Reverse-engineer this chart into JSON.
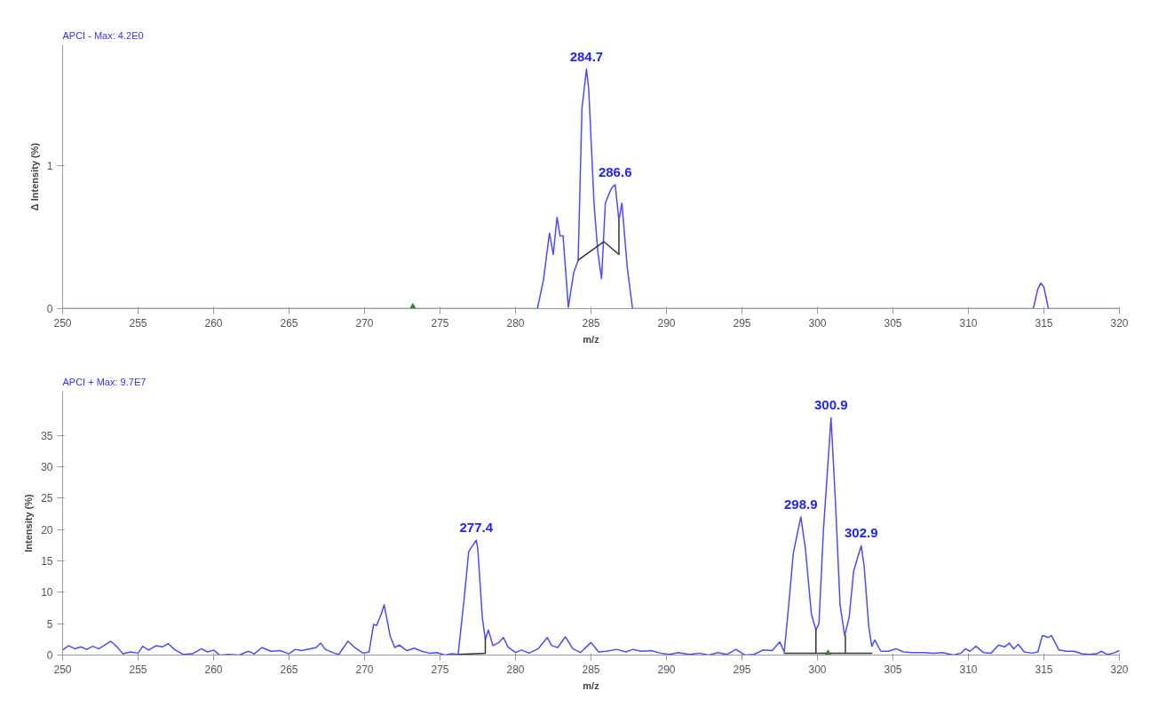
{
  "chart_data": [
    {
      "type": "line",
      "title": "APCI -   Max: 4.2E0",
      "xlabel": "m/z",
      "ylabel": "Δ Intensity (%)",
      "xlim": [
        250,
        320
      ],
      "xticks": [
        250,
        255,
        260,
        265,
        270,
        275,
        280,
        285,
        290,
        295,
        300,
        305,
        310,
        315,
        320
      ],
      "ylim": [
        0,
        1.85
      ],
      "yticks": [
        0,
        1
      ],
      "grid": false,
      "annotations": [
        {
          "text": "284.7",
          "x": 284.7,
          "y": 1.68
        },
        {
          "text": "286.6",
          "x": 286.6,
          "y": 0.87
        }
      ],
      "series": [
        {
          "color": "#4a4aff",
          "x": [
            250,
            281.45,
            281.85,
            282.25,
            282.5,
            282.75,
            282.95,
            283.15,
            283.5,
            283.85,
            284.15,
            284.4,
            284.7,
            284.85,
            285.2,
            285.45,
            285.7,
            285.95,
            286.25,
            286.4,
            286.6,
            286.85,
            287.05,
            287.4,
            287.75,
            314.3,
            314.6,
            314.8,
            315.0,
            315.3,
            320
          ],
          "values": [
            0,
            0,
            0.2,
            0.53,
            0.38,
            0.64,
            0.51,
            0.51,
            0.01,
            0.25,
            0.34,
            1.4,
            1.68,
            1.54,
            0.74,
            0.4,
            0.21,
            0.74,
            0.82,
            0.85,
            0.87,
            0.62,
            0.74,
            0.29,
            0,
            0,
            0.14,
            0.18,
            0.15,
            0,
            0
          ]
        },
        {
          "color": "#333333",
          "x": [
            284.15,
            285.85,
            286.85,
            286.85
          ],
          "values": [
            0.34,
            0.47,
            0.38,
            0.62
          ]
        },
        {
          "type": "scatter",
          "marker": "triangle",
          "color": "#2e8b2e",
          "x": [
            273.2
          ],
          "values": [
            0
          ]
        }
      ]
    },
    {
      "type": "line",
      "title": "APCI +   Max: 9.7E7",
      "xlabel": "m/z",
      "ylabel": "Intensity (%)",
      "xlim": [
        250,
        320
      ],
      "xticks": [
        250,
        255,
        260,
        265,
        270,
        275,
        280,
        285,
        290,
        295,
        300,
        305,
        310,
        315,
        320
      ],
      "ylim": [
        0,
        42
      ],
      "yticks": [
        0,
        5,
        10,
        15,
        20,
        25,
        30,
        35
      ],
      "grid": false,
      "annotations": [
        {
          "text": "277.4",
          "x": 277.4,
          "y": 18.3
        },
        {
          "text": "298.9",
          "x": 298.9,
          "y": 22
        },
        {
          "text": "300.9",
          "x": 300.9,
          "y": 37.8
        },
        {
          "text": "302.9",
          "x": 302.9,
          "y": 17.4
        }
      ],
      "series": [
        {
          "color": "#4a4aff",
          "x": [
            250,
            250.4,
            250.8,
            251.2,
            251.6,
            252,
            252.4,
            252.8,
            253.2,
            253.6,
            254,
            254.5,
            255,
            255.3,
            255.7,
            256.2,
            256.6,
            257,
            257.4,
            258,
            258.6,
            259.2,
            259.6,
            260,
            260.4,
            261,
            261.7,
            262.3,
            262.7,
            263.2,
            263.8,
            264.4,
            265,
            265.4,
            265.8,
            266.4,
            266.8,
            267.1,
            267.4,
            268,
            268.3,
            268.9,
            269.4,
            269.9,
            270.3,
            270.6,
            270.8,
            271.1,
            271.3,
            271.7,
            272,
            272.3,
            272.8,
            273.3,
            273.8,
            274.3,
            274.8,
            275.3,
            275.8,
            276.2,
            276.6,
            276.9,
            277.4,
            277.5,
            277.8,
            278.0,
            278.2,
            278.5,
            278.9,
            279.2,
            279.5,
            280,
            280.4,
            280.9,
            281.5,
            282.1,
            282.4,
            282.8,
            283.3,
            283.8,
            284.3,
            285,
            285.5,
            286,
            286.7,
            287.3,
            287.8,
            288.3,
            289,
            289.6,
            290.2,
            290.8,
            291.5,
            292.2,
            292.8,
            293.4,
            294,
            294.6,
            295.2,
            295.8,
            296.4,
            297,
            297.5,
            297.8,
            298.1,
            298.4,
            298.9,
            299.2,
            299.6,
            299.9,
            300.1,
            300.4,
            300.9,
            301.2,
            301.5,
            301.8,
            302.1,
            302.4,
            302.9,
            303.1,
            303.4,
            303.6,
            303.8,
            304.2,
            304.7,
            305.2,
            305.7,
            306.3,
            307,
            307.7,
            308.3,
            309,
            309.5,
            309.8,
            310.1,
            310.5,
            311,
            311.5,
            312,
            312.4,
            312.7,
            313,
            313.3,
            313.7,
            314.2,
            314.6,
            314.9,
            315.3,
            315.5,
            316,
            316.5,
            317,
            317.5,
            318,
            318.5,
            318.8,
            319.2,
            319.6,
            320
          ],
          "values": [
            0.8,
            1.5,
            1.0,
            1.3,
            0.9,
            1.4,
            1.0,
            1.6,
            2.2,
            1.3,
            0.2,
            0.5,
            0.3,
            1.4,
            0.8,
            1.5,
            1.3,
            1.8,
            0.9,
            0.1,
            0.2,
            1.0,
            0.5,
            0.8,
            0.0,
            0.1,
            0.0,
            0.6,
            0.2,
            1.2,
            0.6,
            0.7,
            0.2,
            0.9,
            0.7,
            1.0,
            1.2,
            1.9,
            0.9,
            0.3,
            0.1,
            2.2,
            1.1,
            0.3,
            0.5,
            4.9,
            4.7,
            6.5,
            8.0,
            3.0,
            1.2,
            1.6,
            0.7,
            1.1,
            0.6,
            0.3,
            0.4,
            0.0,
            0.2,
            0.1,
            9.0,
            16.5,
            18.3,
            17.0,
            6.0,
            2.5,
            4.0,
            1.5,
            2.0,
            2.8,
            1.3,
            0.4,
            0.8,
            0.3,
            1.0,
            2.8,
            1.5,
            1.2,
            2.9,
            1.0,
            0.4,
            2.0,
            0.5,
            0.6,
            0.9,
            0.5,
            0.9,
            0.6,
            0.7,
            0.3,
            0.1,
            0.4,
            0.1,
            0.3,
            0.0,
            0.4,
            0.1,
            0.9,
            0.0,
            0.1,
            0.8,
            0.7,
            2.1,
            0.5,
            8.0,
            16.2,
            22.0,
            17.0,
            6.5,
            4.0,
            5.0,
            20.0,
            37.8,
            24.0,
            8.0,
            3.1,
            6.0,
            13.4,
            17.4,
            14.0,
            4.5,
            1.4,
            2.4,
            0.6,
            0.6,
            1.0,
            0.5,
            0.4,
            0.4,
            0.3,
            0.4,
            0.0,
            0.3,
            1.0,
            0.6,
            1.4,
            0.4,
            0.3,
            1.6,
            1.3,
            1.9,
            1.0,
            1.7,
            0.5,
            0.3,
            0.5,
            3.1,
            2.8,
            3.1,
            0.8,
            0.6,
            0.6,
            0.2,
            0.1,
            0.2,
            0.6,
            0.1,
            0.3,
            0.7
          ]
        },
        {
          "color": "#333333",
          "x": [
            276.2,
            278.0,
            278.0
          ],
          "values": [
            0.1,
            0.3,
            2.6
          ]
        },
        {
          "color": "#333333",
          "x": [
            297.8,
            303.6,
            300.0,
            299.9,
            299.9,
            301.0,
            301.85,
            301.85
          ],
          "values": [
            0.3,
            0.3,
            null,
            0.3,
            4.0,
            null,
            0.3,
            3.1
          ]
        },
        {
          "type": "scatter",
          "marker": "triangle",
          "color": "#2e8b2e",
          "x": [
            300.7
          ],
          "values": [
            0
          ]
        }
      ]
    }
  ]
}
